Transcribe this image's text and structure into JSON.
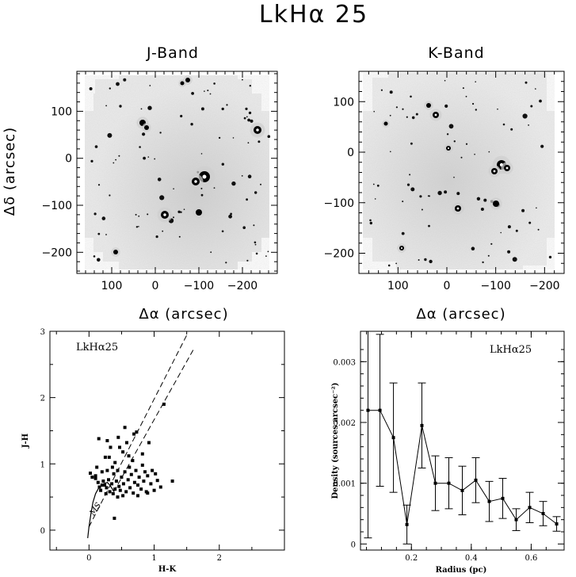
{
  "figure": {
    "title": "LkHα 25"
  },
  "image_panels": [
    {
      "title": "J-Band",
      "xlabel": "Δα (arcsec)",
      "ylabel": "Δδ (arcsec)",
      "xlim": [
        180,
        -280
      ],
      "ylim": [
        -245,
        185
      ],
      "xticks": [
        100,
        0,
        -100,
        -200
      ],
      "xtick_labels": [
        "100",
        "0",
        "−100",
        "−200"
      ],
      "yticks": [
        100,
        0,
        -100,
        -200
      ],
      "ytick_labels": [
        "100",
        "0",
        "−100",
        "−200"
      ]
    },
    {
      "title": "K-Band",
      "xlabel": "Δα (arcsec)",
      "ylabel": "",
      "xlim": [
        180,
        -240
      ],
      "ylim": [
        -240,
        160
      ],
      "xticks": [
        100,
        0,
        -100,
        -200
      ],
      "xtick_labels": [
        "100",
        "0",
        "−100",
        "−200"
      ],
      "yticks": [
        100,
        0,
        -100,
        -200
      ],
      "ytick_labels": [
        "100",
        "0",
        "−100",
        "−200"
      ]
    }
  ],
  "chart_data": [
    {
      "type": "scatter",
      "annotation": "LkHα25",
      "xlabel": "H-K",
      "ylabel": "J-H",
      "xlim": [
        -0.6,
        3.0
      ],
      "ylim": [
        -0.3,
        3.0
      ],
      "xticks": [
        0,
        1,
        2
      ],
      "yticks": [
        0,
        1,
        2,
        3
      ],
      "curve_label": "MS",
      "main_sequence": [
        [
          -0.02,
          -0.12
        ],
        [
          0.0,
          0.05
        ],
        [
          0.03,
          0.25
        ],
        [
          0.06,
          0.42
        ],
        [
          0.1,
          0.55
        ],
        [
          0.15,
          0.64
        ],
        [
          0.22,
          0.7
        ],
        [
          0.28,
          0.72
        ],
        [
          0.32,
          0.68
        ],
        [
          0.36,
          0.62
        ],
        [
          0.38,
          0.58
        ]
      ],
      "reddening_lines": [
        [
          [
            0.0,
            0.05
          ],
          [
            1.52,
            2.98
          ]
        ],
        [
          [
            0.38,
            0.58
          ],
          [
            1.6,
            2.72
          ]
        ]
      ],
      "points": [
        [
          0.02,
          0.86
        ],
        [
          0.05,
          0.8
        ],
        [
          0.1,
          0.78
        ],
        [
          0.12,
          0.95
        ],
        [
          0.14,
          0.72
        ],
        [
          0.16,
          0.65
        ],
        [
          0.18,
          0.6
        ],
        [
          0.2,
          0.88
        ],
        [
          0.22,
          0.74
        ],
        [
          0.24,
          0.68
        ],
        [
          0.25,
          1.1
        ],
        [
          0.27,
          0.64
        ],
        [
          0.28,
          0.9
        ],
        [
          0.3,
          0.76
        ],
        [
          0.32,
          0.58
        ],
        [
          0.33,
          1.25
        ],
        [
          0.35,
          0.7
        ],
        [
          0.37,
          0.55
        ],
        [
          0.38,
          0.85
        ],
        [
          0.4,
          1.02
        ],
        [
          0.4,
          0.62
        ],
        [
          0.42,
          0.74
        ],
        [
          0.44,
          0.9
        ],
        [
          0.45,
          1.4
        ],
        [
          0.46,
          0.66
        ],
        [
          0.48,
          0.6
        ],
        [
          0.5,
          0.8
        ],
        [
          0.52,
          1.18
        ],
        [
          0.53,
          0.7
        ],
        [
          0.55,
          0.88
        ],
        [
          0.57,
          0.58
        ],
        [
          0.58,
          1.32
        ],
        [
          0.6,
          0.76
        ],
        [
          0.62,
          0.95
        ],
        [
          0.63,
          0.64
        ],
        [
          0.65,
          0.84
        ],
        [
          0.67,
          1.05
        ],
        [
          0.68,
          0.56
        ],
        [
          0.7,
          0.72
        ],
        [
          0.72,
          0.9
        ],
        [
          0.73,
          1.48
        ],
        [
          0.75,
          0.68
        ],
        [
          0.77,
          0.8
        ],
        [
          0.8,
          0.62
        ],
        [
          0.82,
          1.15
        ],
        [
          0.84,
          0.74
        ],
        [
          0.86,
          0.88
        ],
        [
          0.88,
          0.58
        ],
        [
          0.9,
          0.82
        ],
        [
          0.92,
          1.32
        ],
        [
          0.95,
          0.7
        ],
        [
          0.97,
          0.9
        ],
        [
          1.0,
          0.6
        ],
        [
          1.02,
          0.85
        ],
        [
          1.05,
          0.75
        ],
        [
          1.1,
          0.65
        ],
        [
          0.15,
          1.38
        ],
        [
          0.28,
          1.35
        ],
        [
          0.47,
          1.25
        ],
        [
          0.55,
          1.55
        ],
        [
          0.69,
          1.45
        ],
        [
          0.1,
          0.82
        ],
        [
          0.36,
          0.95
        ],
        [
          0.82,
          0.98
        ],
        [
          1.15,
          1.9
        ],
        [
          1.28,
          0.74
        ],
        [
          0.31,
          1.1
        ],
        [
          0.61,
          1.12
        ],
        [
          0.39,
          0.18
        ],
        [
          0.44,
          0.5
        ],
        [
          0.52,
          0.52
        ],
        [
          0.75,
          0.52
        ],
        [
          0.9,
          0.56
        ],
        [
          0.2,
          0.68
        ],
        [
          0.26,
          0.55
        ]
      ]
    },
    {
      "type": "line",
      "annotation": "LkHα25",
      "xlabel": "Radius (pc)",
      "ylabel": "Density (sources arcsec⁻²)",
      "xlim": [
        0.03,
        0.71
      ],
      "ylim": [
        -0.0001,
        0.0035
      ],
      "xticks": [
        0.2,
        0.4,
        0.6
      ],
      "yticks": [
        0,
        0.001,
        0.002,
        0.003
      ],
      "ytick_labels": [
        "0",
        "0.001",
        "0.002",
        "0.003"
      ],
      "x": [
        0.055,
        0.095,
        0.14,
        0.185,
        0.235,
        0.28,
        0.325,
        0.37,
        0.415,
        0.46,
        0.505,
        0.55,
        0.595,
        0.64,
        0.685
      ],
      "y": [
        0.0022,
        0.0022,
        0.00175,
        0.00032,
        0.00195,
        0.001,
        0.001,
        0.00088,
        0.00105,
        0.0007,
        0.00075,
        0.0004,
        0.0006,
        0.0005,
        0.00033
      ],
      "err": [
        0.0021,
        0.00125,
        0.0009,
        0.00032,
        0.0007,
        0.00045,
        0.00042,
        0.0004,
        0.00037,
        0.00033,
        0.00033,
        0.00018,
        0.00025,
        0.0002,
        0.00012
      ]
    }
  ]
}
